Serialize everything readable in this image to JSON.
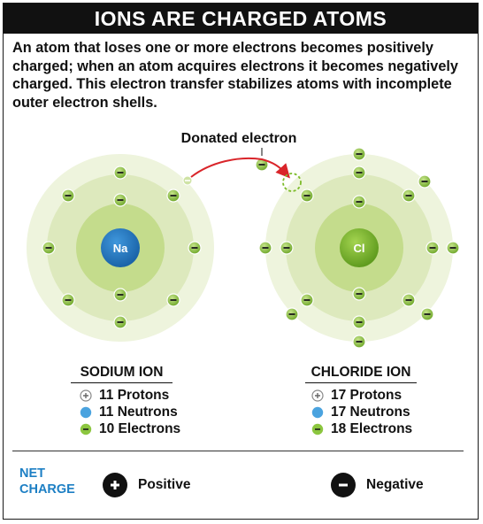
{
  "title": "IONS ARE CHARGED ATOMS",
  "intro": "An atom that loses one or more electrons becomes positively charged; when an atom acquires electrons it becomes negatively charged. This electron transfer stabilizes atoms with incomplete outer electron shells.",
  "donated_label": "Donated electron",
  "sodium": {
    "symbol": "Na",
    "title": "SODIUM ION",
    "protons": "11 Protons",
    "neutrons": "11 Neutrons",
    "electrons": "10 Electrons"
  },
  "chloride": {
    "symbol": "Cl",
    "title": "CHLORIDE ION",
    "protons": "17 Protons",
    "neutrons": "17 Neutrons",
    "electrons": "18 Electrons"
  },
  "net_charge": {
    "label_line1": "NET",
    "label_line2": "CHARGE",
    "positive": "Positive",
    "negative": "Negative"
  },
  "colors": {
    "sodium_nucleus": "#2175bf",
    "chloride_nucleus": "#7dbb2a",
    "electron": "#8cc63f",
    "arrow": "#d9252a",
    "net_label": "#1d7fc4"
  }
}
